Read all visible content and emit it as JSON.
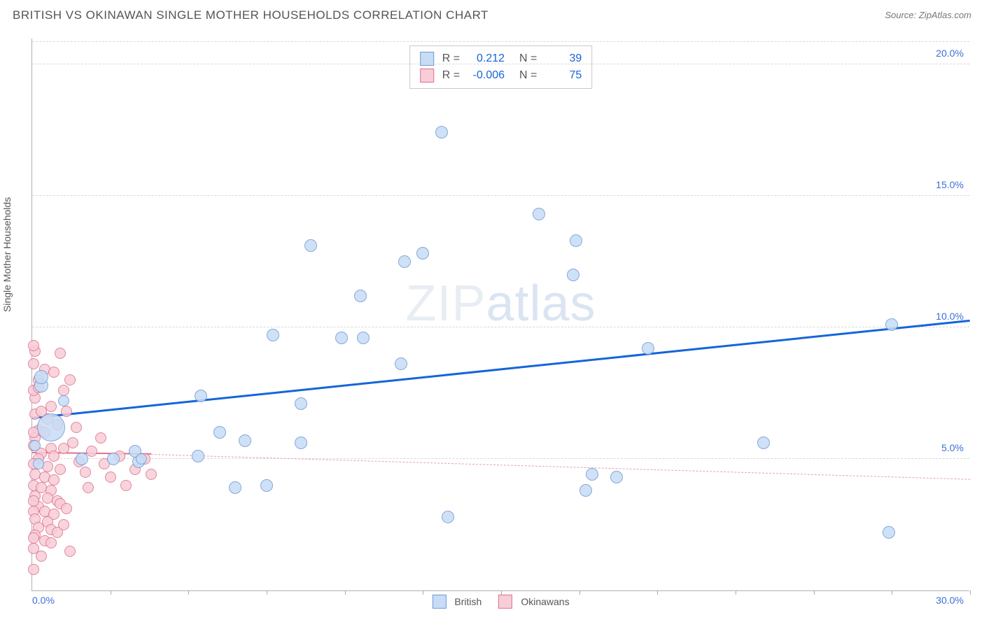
{
  "title": "BRITISH VS OKINAWAN SINGLE MOTHER HOUSEHOLDS CORRELATION CHART",
  "source": "Source: ZipAtlas.com",
  "watermark_a": "ZIP",
  "watermark_b": "atlas",
  "ylabel": "Single Mother Households",
  "chart": {
    "type": "scatter",
    "x_range": [
      0.0,
      30.0
    ],
    "y_range": [
      0.0,
      21.0
    ],
    "x_min_label": "0.0%",
    "x_max_label": "30.0%",
    "y_ticks": [
      5.0,
      10.0,
      15.0,
      20.0
    ],
    "y_tick_labels": [
      "5.0%",
      "10.0%",
      "15.0%",
      "20.0%"
    ],
    "x_tick_positions": [
      2.5,
      5.0,
      7.5,
      10.0,
      12.5,
      15.0,
      17.5,
      20.0,
      22.5,
      25.0,
      27.5,
      30.0
    ],
    "grid_color": "#d8d8d8",
    "background_color": "#ffffff",
    "axis_color": "#b0b0b0",
    "tick_label_color": "#3b6fd6"
  },
  "series": {
    "british": {
      "label": "British",
      "color_fill": "#c7dcf5",
      "color_stroke": "#6f9ad6",
      "marker_radius": 9,
      "trend": {
        "x1": 0.0,
        "y1": 6.5,
        "x2": 30.0,
        "y2": 10.2,
        "color": "#1565d8",
        "width": 3,
        "dash": "solid"
      },
      "corr": {
        "r_label": "R =",
        "r": "0.212",
        "n_label": "N =",
        "n": "39"
      },
      "points": [
        {
          "x": 0.3,
          "y": 7.8,
          "r": 10
        },
        {
          "x": 0.3,
          "y": 8.1,
          "r": 10
        },
        {
          "x": 0.6,
          "y": 6.2,
          "r": 20
        },
        {
          "x": 0.1,
          "y": 5.5,
          "r": 8
        },
        {
          "x": 1.6,
          "y": 5.0,
          "r": 9
        },
        {
          "x": 2.6,
          "y": 5.0,
          "r": 9
        },
        {
          "x": 3.4,
          "y": 4.9,
          "r": 9
        },
        {
          "x": 3.3,
          "y": 5.3,
          "r": 9
        },
        {
          "x": 3.5,
          "y": 5.0,
          "r": 8
        },
        {
          "x": 5.3,
          "y": 5.1,
          "r": 9
        },
        {
          "x": 5.4,
          "y": 7.4,
          "r": 9
        },
        {
          "x": 6.0,
          "y": 6.0,
          "r": 9
        },
        {
          "x": 6.5,
          "y": 3.9,
          "r": 9
        },
        {
          "x": 6.8,
          "y": 5.7,
          "r": 9
        },
        {
          "x": 7.5,
          "y": 4.0,
          "r": 9
        },
        {
          "x": 7.7,
          "y": 9.7,
          "r": 9
        },
        {
          "x": 8.6,
          "y": 7.1,
          "r": 9
        },
        {
          "x": 8.6,
          "y": 5.6,
          "r": 9
        },
        {
          "x": 8.9,
          "y": 13.1,
          "r": 9
        },
        {
          "x": 9.9,
          "y": 9.6,
          "r": 9
        },
        {
          "x": 10.6,
          "y": 9.6,
          "r": 9
        },
        {
          "x": 10.5,
          "y": 11.2,
          "r": 9
        },
        {
          "x": 11.8,
          "y": 8.6,
          "r": 9
        },
        {
          "x": 11.9,
          "y": 12.5,
          "r": 9
        },
        {
          "x": 12.5,
          "y": 12.8,
          "r": 9
        },
        {
          "x": 13.1,
          "y": 17.4,
          "r": 9
        },
        {
          "x": 13.3,
          "y": 2.8,
          "r": 9
        },
        {
          "x": 16.2,
          "y": 14.3,
          "r": 9
        },
        {
          "x": 17.3,
          "y": 12.0,
          "r": 9
        },
        {
          "x": 17.4,
          "y": 13.3,
          "r": 9
        },
        {
          "x": 17.9,
          "y": 4.4,
          "r": 9
        },
        {
          "x": 17.7,
          "y": 3.8,
          "r": 9
        },
        {
          "x": 18.7,
          "y": 4.3,
          "r": 9
        },
        {
          "x": 19.7,
          "y": 9.2,
          "r": 9
        },
        {
          "x": 23.4,
          "y": 5.6,
          "r": 9
        },
        {
          "x": 27.4,
          "y": 2.2,
          "r": 9
        },
        {
          "x": 27.5,
          "y": 10.1,
          "r": 9
        },
        {
          "x": 1.0,
          "y": 7.2,
          "r": 8
        },
        {
          "x": 0.2,
          "y": 4.8,
          "r": 8
        }
      ]
    },
    "okinawans": {
      "label": "Okinawans",
      "color_fill": "#f7cdd8",
      "color_stroke": "#e0708d",
      "marker_radius": 8,
      "trend_solid": {
        "x1": 0.0,
        "y1": 5.2,
        "x2": 3.8,
        "y2": 5.15,
        "color": "#e0708d",
        "width": 2
      },
      "trend_dash": {
        "x1": 3.8,
        "y1": 5.15,
        "x2": 30.0,
        "y2": 4.2,
        "color": "#e7a0b2",
        "width": 1
      },
      "corr": {
        "r_label": "R =",
        "r": "-0.006",
        "n_label": "N =",
        "n": "75"
      },
      "points": [
        {
          "x": 0.1,
          "y": 9.1
        },
        {
          "x": 0.9,
          "y": 9.0
        },
        {
          "x": 0.4,
          "y": 8.4
        },
        {
          "x": 0.7,
          "y": 8.3
        },
        {
          "x": 0.2,
          "y": 8.0
        },
        {
          "x": 1.0,
          "y": 7.6
        },
        {
          "x": 0.1,
          "y": 7.3
        },
        {
          "x": 0.6,
          "y": 7.0
        },
        {
          "x": 0.1,
          "y": 6.7
        },
        {
          "x": 0.5,
          "y": 6.5
        },
        {
          "x": 0.8,
          "y": 6.3
        },
        {
          "x": 0.2,
          "y": 6.1
        },
        {
          "x": 0.1,
          "y": 5.8
        },
        {
          "x": 0.05,
          "y": 5.5
        },
        {
          "x": 0.6,
          "y": 5.4
        },
        {
          "x": 1.0,
          "y": 5.4
        },
        {
          "x": 0.3,
          "y": 5.2
        },
        {
          "x": 0.7,
          "y": 5.1
        },
        {
          "x": 0.2,
          "y": 5.0
        },
        {
          "x": 0.05,
          "y": 4.8
        },
        {
          "x": 0.5,
          "y": 4.7
        },
        {
          "x": 0.9,
          "y": 4.6
        },
        {
          "x": 0.1,
          "y": 4.4
        },
        {
          "x": 0.4,
          "y": 4.3
        },
        {
          "x": 0.7,
          "y": 4.2
        },
        {
          "x": 0.05,
          "y": 4.0
        },
        {
          "x": 0.3,
          "y": 3.9
        },
        {
          "x": 0.6,
          "y": 3.8
        },
        {
          "x": 0.1,
          "y": 3.6
        },
        {
          "x": 0.5,
          "y": 3.5
        },
        {
          "x": 0.8,
          "y": 3.4
        },
        {
          "x": 0.2,
          "y": 3.2
        },
        {
          "x": 0.05,
          "y": 3.0
        },
        {
          "x": 0.4,
          "y": 3.0
        },
        {
          "x": 0.7,
          "y": 2.9
        },
        {
          "x": 0.1,
          "y": 2.7
        },
        {
          "x": 0.5,
          "y": 2.6
        },
        {
          "x": 0.2,
          "y": 2.4
        },
        {
          "x": 0.6,
          "y": 2.3
        },
        {
          "x": 0.1,
          "y": 2.1
        },
        {
          "x": 0.4,
          "y": 1.9
        },
        {
          "x": 1.2,
          "y": 1.5
        },
        {
          "x": 0.3,
          "y": 1.3
        },
        {
          "x": 1.3,
          "y": 5.6
        },
        {
          "x": 1.5,
          "y": 4.9
        },
        {
          "x": 1.7,
          "y": 4.5
        },
        {
          "x": 1.8,
          "y": 3.9
        },
        {
          "x": 1.9,
          "y": 5.3
        },
        {
          "x": 2.2,
          "y": 5.8
        },
        {
          "x": 2.3,
          "y": 4.8
        },
        {
          "x": 2.5,
          "y": 4.3
        },
        {
          "x": 2.8,
          "y": 5.1
        },
        {
          "x": 3.0,
          "y": 4.0
        },
        {
          "x": 3.3,
          "y": 4.6
        },
        {
          "x": 3.6,
          "y": 5.0
        },
        {
          "x": 3.8,
          "y": 4.4
        },
        {
          "x": 0.05,
          "y": 0.8
        },
        {
          "x": 0.05,
          "y": 9.3
        },
        {
          "x": 0.05,
          "y": 2.0
        },
        {
          "x": 1.1,
          "y": 6.8
        },
        {
          "x": 1.4,
          "y": 6.2
        },
        {
          "x": 0.9,
          "y": 3.3
        },
        {
          "x": 0.8,
          "y": 2.2
        },
        {
          "x": 0.6,
          "y": 1.8
        },
        {
          "x": 0.05,
          "y": 6.0
        },
        {
          "x": 0.05,
          "y": 3.4
        },
        {
          "x": 0.05,
          "y": 7.6
        },
        {
          "x": 0.05,
          "y": 8.6
        },
        {
          "x": 1.2,
          "y": 8.0
        },
        {
          "x": 1.1,
          "y": 3.1
        },
        {
          "x": 1.0,
          "y": 2.5
        },
        {
          "x": 0.05,
          "y": 1.6
        },
        {
          "x": 0.4,
          "y": 6.0
        },
        {
          "x": 0.3,
          "y": 6.8
        },
        {
          "x": 0.2,
          "y": 7.7
        }
      ]
    }
  }
}
